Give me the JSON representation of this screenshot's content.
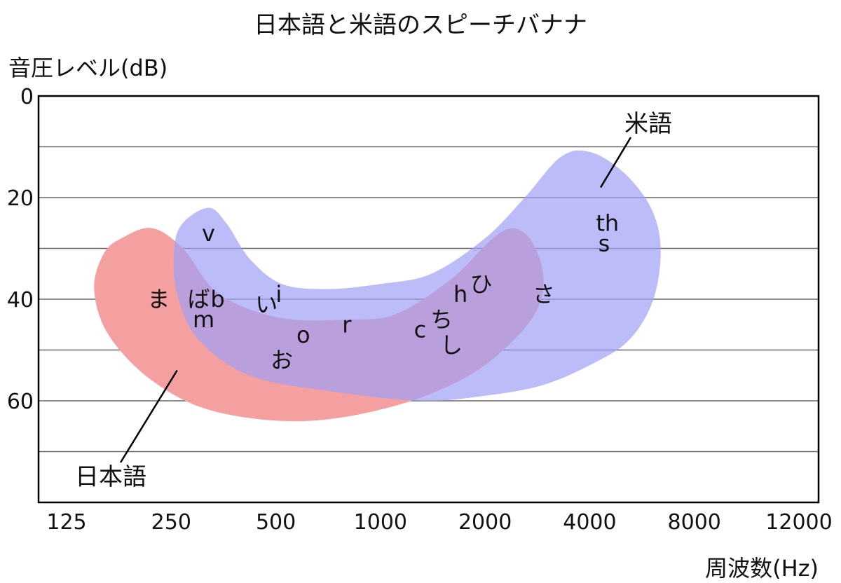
{
  "chart_data": {
    "type": "area",
    "title": "日本語と米語のスピーチバナナ",
    "ylabel": "音圧レベル(dB)",
    "xlabel": "周波数(Hz)",
    "x_ticks": [
      "125",
      "250",
      "500",
      "1000",
      "2000",
      "4000",
      "8000",
      "12000"
    ],
    "y_ticks": [
      "0",
      "20",
      "40",
      "60"
    ],
    "ylim": [
      0,
      80
    ],
    "y_inverted": true,
    "grid": true,
    "grid_step_db": 10,
    "series": [
      {
        "name": "日本語",
        "color": "#f4a0a0",
        "outline_hz_db": [
          [
            180,
            28
          ],
          [
            220,
            26
          ],
          [
            270,
            30
          ],
          [
            330,
            38
          ],
          [
            420,
            42
          ],
          [
            560,
            44
          ],
          [
            800,
            44
          ],
          [
            1100,
            43
          ],
          [
            1600,
            36
          ],
          [
            2200,
            27
          ],
          [
            2600,
            27
          ],
          [
            2900,
            33
          ],
          [
            2900,
            40
          ],
          [
            2500,
            47
          ],
          [
            1800,
            55
          ],
          [
            1100,
            61
          ],
          [
            600,
            64
          ],
          [
            330,
            62
          ],
          [
            220,
            56
          ],
          [
            165,
            47
          ],
          [
            150,
            38
          ],
          [
            160,
            31
          ]
        ],
        "phonemes": [
          {
            "text": "ま",
            "hz": 230,
            "db": 40
          },
          {
            "text": "お",
            "hz": 520,
            "db": 52
          },
          {
            "text": "し",
            "hz": 1600,
            "db": 49
          }
        ]
      },
      {
        "name": "米語",
        "color": "#9fa0f5",
        "outline_hz_db": [
          [
            270,
            25
          ],
          [
            320,
            22
          ],
          [
            360,
            25
          ],
          [
            420,
            32
          ],
          [
            520,
            37
          ],
          [
            700,
            38
          ],
          [
            1000,
            37
          ],
          [
            1400,
            35
          ],
          [
            2000,
            28
          ],
          [
            2600,
            20
          ],
          [
            3300,
            12
          ],
          [
            4000,
            11
          ],
          [
            5000,
            15
          ],
          [
            6000,
            22
          ],
          [
            6400,
            30
          ],
          [
            6100,
            40
          ],
          [
            5200,
            48
          ],
          [
            4000,
            53
          ],
          [
            2900,
            57
          ],
          [
            2000,
            59
          ],
          [
            1300,
            60
          ],
          [
            700,
            58
          ],
          [
            420,
            55
          ],
          [
            300,
            48
          ],
          [
            260,
            39
          ],
          [
            255,
            30
          ]
        ],
        "phonemes": [
          {
            "text": "v",
            "hz": 320,
            "db": 27
          },
          {
            "text": "th",
            "hz": 4500,
            "db": 25
          },
          {
            "text": "s",
            "hz": 4400,
            "db": 29
          },
          {
            "text": "c",
            "hz": 1300,
            "db": 46
          },
          {
            "text": "r",
            "hz": 800,
            "db": 45
          },
          {
            "text": "o",
            "hz": 600,
            "db": 47
          },
          {
            "text": "b",
            "hz": 340,
            "db": 40
          },
          {
            "text": "m",
            "hz": 310,
            "db": 44
          },
          {
            "text": "i",
            "hz": 510,
            "db": 39
          }
        ]
      }
    ],
    "shared_phonemes": [
      {
        "text": "ば",
        "hz": 300,
        "db": 40
      },
      {
        "text": "い",
        "hz": 470,
        "db": 41
      },
      {
        "text": "ち",
        "hz": 1500,
        "db": 44
      },
      {
        "text": "h",
        "hz": 1700,
        "db": 39
      },
      {
        "text": "ひ",
        "hz": 1950,
        "db": 37
      },
      {
        "text": "さ",
        "hz": 2950,
        "db": 39
      }
    ],
    "region_labels": [
      {
        "text": "日本語",
        "series": 0,
        "point_hz_db": [
          260,
          54
        ]
      },
      {
        "text": "米語",
        "series": 1,
        "point_hz_db": [
          4300,
          18
        ]
      }
    ]
  }
}
